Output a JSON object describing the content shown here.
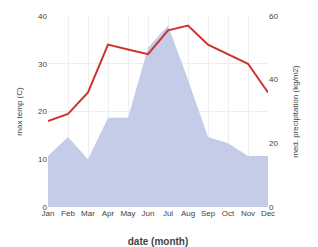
{
  "chart_data": {
    "type": "line",
    "categories": [
      "Jan",
      "Feb",
      "Mar",
      "Apr",
      "May",
      "Jun",
      "Jul",
      "Aug",
      "Sep",
      "Oct",
      "Nov",
      "Dec"
    ],
    "xlabel": "date (month)",
    "ylabel": "max temp (C)",
    "y2label": "med. precipitation (kg/m2)",
    "series": [
      {
        "type": "area",
        "axis": "y2",
        "color": "#c5cce8",
        "values": [
          16,
          22,
          15,
          28,
          28,
          50,
          57,
          40,
          22,
          20,
          16,
          16
        ]
      },
      {
        "type": "line",
        "color": "#cc3333",
        "values": [
          18,
          19.5,
          24,
          34,
          33,
          32,
          37,
          38,
          34,
          32,
          30,
          24
        ]
      }
    ],
    "ylim": [
      0,
      40
    ],
    "yticks": [
      0,
      10,
      20,
      30,
      40
    ],
    "y2lim": [
      0,
      60
    ],
    "y2ticks": [
      0,
      20,
      40,
      60
    ],
    "grid": true
  }
}
